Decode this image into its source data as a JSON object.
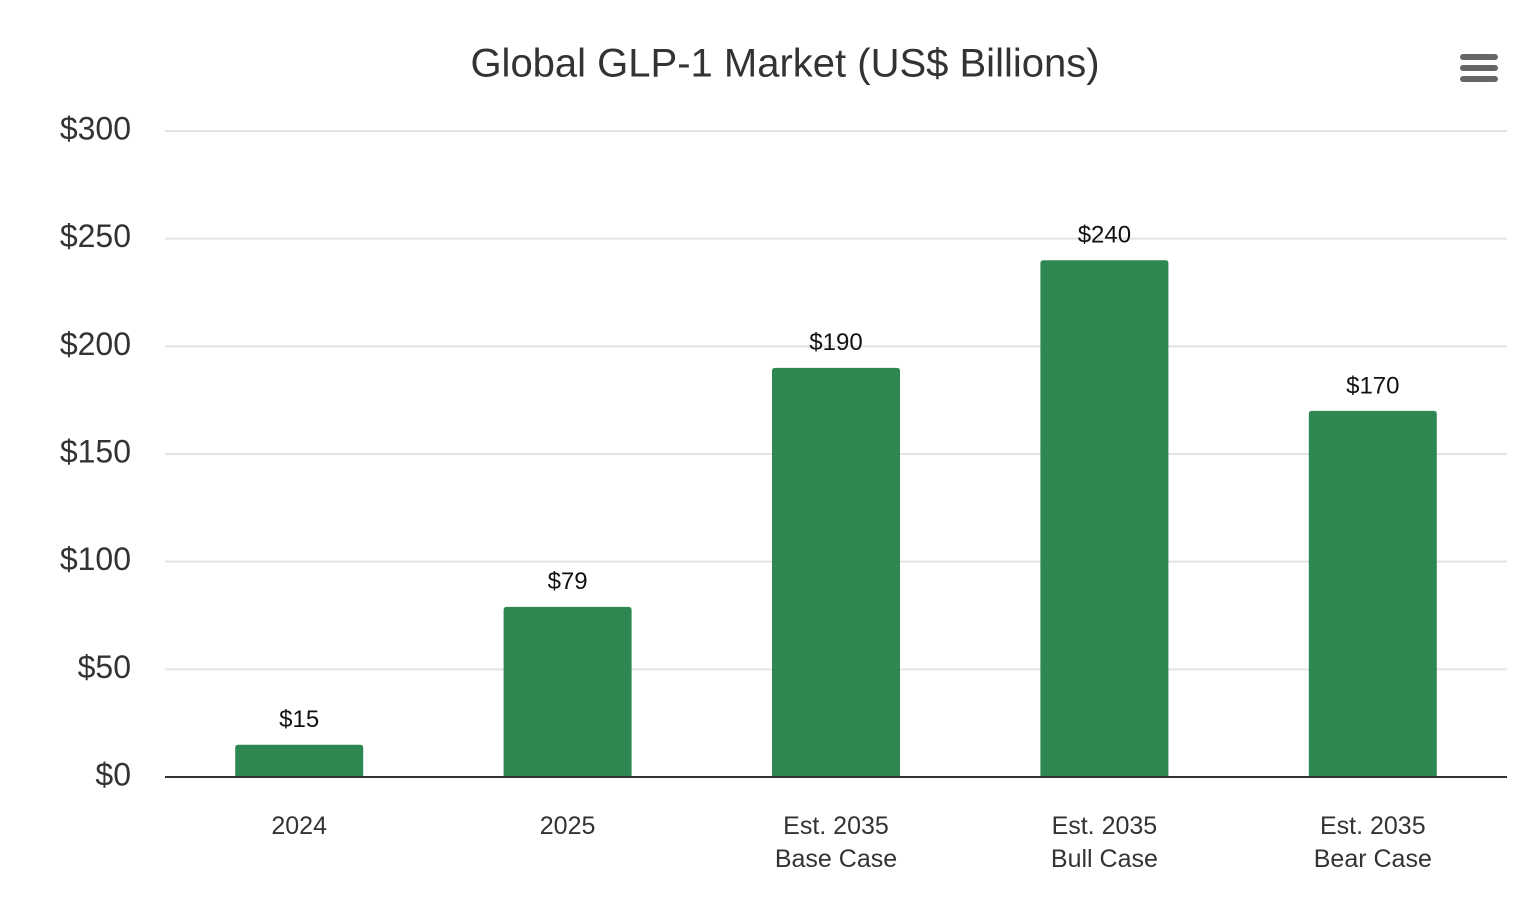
{
  "chart_data": {
    "type": "bar",
    "title": "Global GLP-1 Market (US$ Billions)",
    "categories": [
      "2024",
      "2025",
      "Est. 2035\nBase Case",
      "Est. 2035\nBull Case",
      "Est. 2035\nBear Case"
    ],
    "values": [
      15,
      79,
      190,
      240,
      170
    ],
    "value_labels": [
      "$15",
      "$79",
      "$190",
      "$240",
      "$170"
    ],
    "color": "#2e8650",
    "ylim": [
      0,
      300
    ],
    "yticks": [
      {
        "value": 0,
        "label": "$0"
      },
      {
        "value": 50,
        "label": "$50"
      },
      {
        "value": 100,
        "label": "$100"
      },
      {
        "value": 150,
        "label": "$150"
      },
      {
        "value": 200,
        "label": "$200"
      },
      {
        "value": 250,
        "label": "$250"
      },
      {
        "value": 300,
        "label": "$300"
      }
    ],
    "grid": true
  }
}
